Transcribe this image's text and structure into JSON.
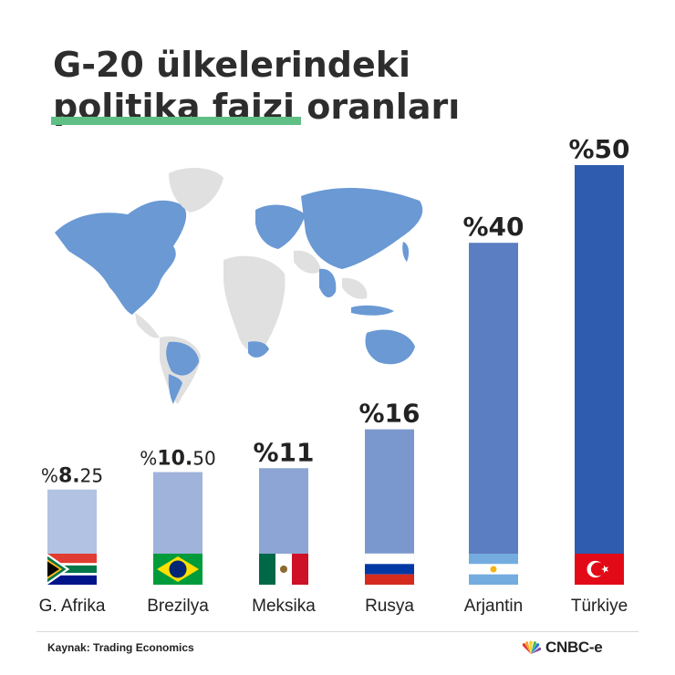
{
  "title": {
    "line1": "G-20 ülkelerindeki",
    "line2": "politika faizi oranları"
  },
  "chart_data": {
    "type": "bar",
    "categories": [
      "G. Afrika",
      "Brezilya",
      "Meksika",
      "Rusya",
      "Arjantin",
      "Türkiye"
    ],
    "values": [
      8.25,
      10.5,
      11,
      16,
      40,
      50
    ],
    "value_labels": [
      {
        "prefix": "%",
        "main": "8.",
        "rest": "25"
      },
      {
        "prefix": "%",
        "main": "10.",
        "rest": "50"
      },
      {
        "prefix": "%",
        "main": "11",
        "rest": ""
      },
      {
        "prefix": "%",
        "main": "16",
        "rest": ""
      },
      {
        "prefix": "%",
        "main": "40",
        "rest": ""
      },
      {
        "prefix": "%",
        "main": "50",
        "rest": ""
      }
    ],
    "bar_colors": [
      "#b2c2e2",
      "#9fb3db",
      "#8da5d4",
      "#7b98ce",
      "#5b7dc1",
      "#2f5cae"
    ],
    "ylim": [
      0,
      50
    ],
    "grid": false,
    "legend": "none"
  },
  "flags": [
    "south-africa-flag",
    "brazil-flag",
    "mexico-flag",
    "russia-flag",
    "argentina-flag",
    "turkey-flag"
  ],
  "colors": {
    "accent_underline": "#5fbf84",
    "map_highlight": "#6a99d4",
    "map_other": "#e0e0e0"
  },
  "source": "Kaynak: Trading Economics",
  "brand": "CNBC-e"
}
